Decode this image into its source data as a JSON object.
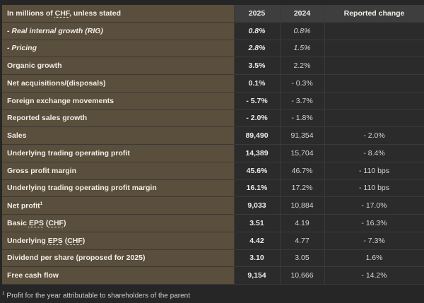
{
  "header": {
    "label_pre": "In millions of ",
    "label_abbr": "CHF",
    "label_post": ", unless stated",
    "col_2025": "2025",
    "col_2024": "2024",
    "col_change": "Reported change"
  },
  "rows": [
    {
      "label": "- Real internal growth (RIG)",
      "v2025": "0.8%",
      "v2024": "0.8%",
      "change": ""
    },
    {
      "label": "- Pricing",
      "v2025": "2.8%",
      "v2024": "1.5%",
      "change": ""
    },
    {
      "label": "Organic growth",
      "v2025": "3.5%",
      "v2024": "2.2%",
      "change": ""
    },
    {
      "label": "Net acquisitions/(disposals)",
      "v2025": "0.1%",
      "v2024": "- 0.3%",
      "change": ""
    },
    {
      "label": "Foreign exchange movements",
      "v2025": "- 5.7%",
      "v2024": "- 3.7%",
      "change": ""
    },
    {
      "label": "Reported sales growth",
      "v2025": "- 2.0%",
      "v2024": "- 1.8%",
      "change": ""
    },
    {
      "label": "Sales",
      "v2025": "89,490",
      "v2024": "91,354",
      "change": "- 2.0%"
    },
    {
      "label": "Underlying trading operating profit",
      "v2025": "14,389",
      "v2024": "15,704",
      "change": "- 8.4%"
    },
    {
      "label": "Gross profit margin",
      "v2025": "45.6%",
      "v2024": "46.7%",
      "change": "- 110 bps"
    },
    {
      "label": "Underlying trading operating profit margin",
      "v2025": "16.1%",
      "v2024": "17.2%",
      "change": "- 110 bps"
    },
    {
      "label": "Net profit",
      "label_sup": "1",
      "v2025": "9,033",
      "v2024": "10,884",
      "change": "- 17.0%"
    },
    {
      "label_pre": "Basic ",
      "label_abbr": "EPS",
      "label_mid": " (",
      "label_abbr2": "CHF",
      "label_post": ")",
      "v2025": "3.51",
      "v2024": "4.19",
      "change": "- 16.3%"
    },
    {
      "label_pre": "Underlying ",
      "label_abbr": "EPS",
      "label_mid": " (",
      "label_abbr2": "CHF",
      "label_post": ")",
      "v2025": "4.42",
      "v2024": "4.77",
      "change": "- 7.3%"
    },
    {
      "label": "Dividend per share (proposed for 2025)",
      "v2025": "3.10",
      "v2024": "3.05",
      "change": "1.6%"
    },
    {
      "label": "Free cash flow",
      "v2025": "9,154",
      "v2024": "10,666",
      "change": "- 14.2%"
    }
  ],
  "footnote": {
    "marker": "1",
    "text": " Profit for the year attributable to shareholders of the parent"
  }
}
